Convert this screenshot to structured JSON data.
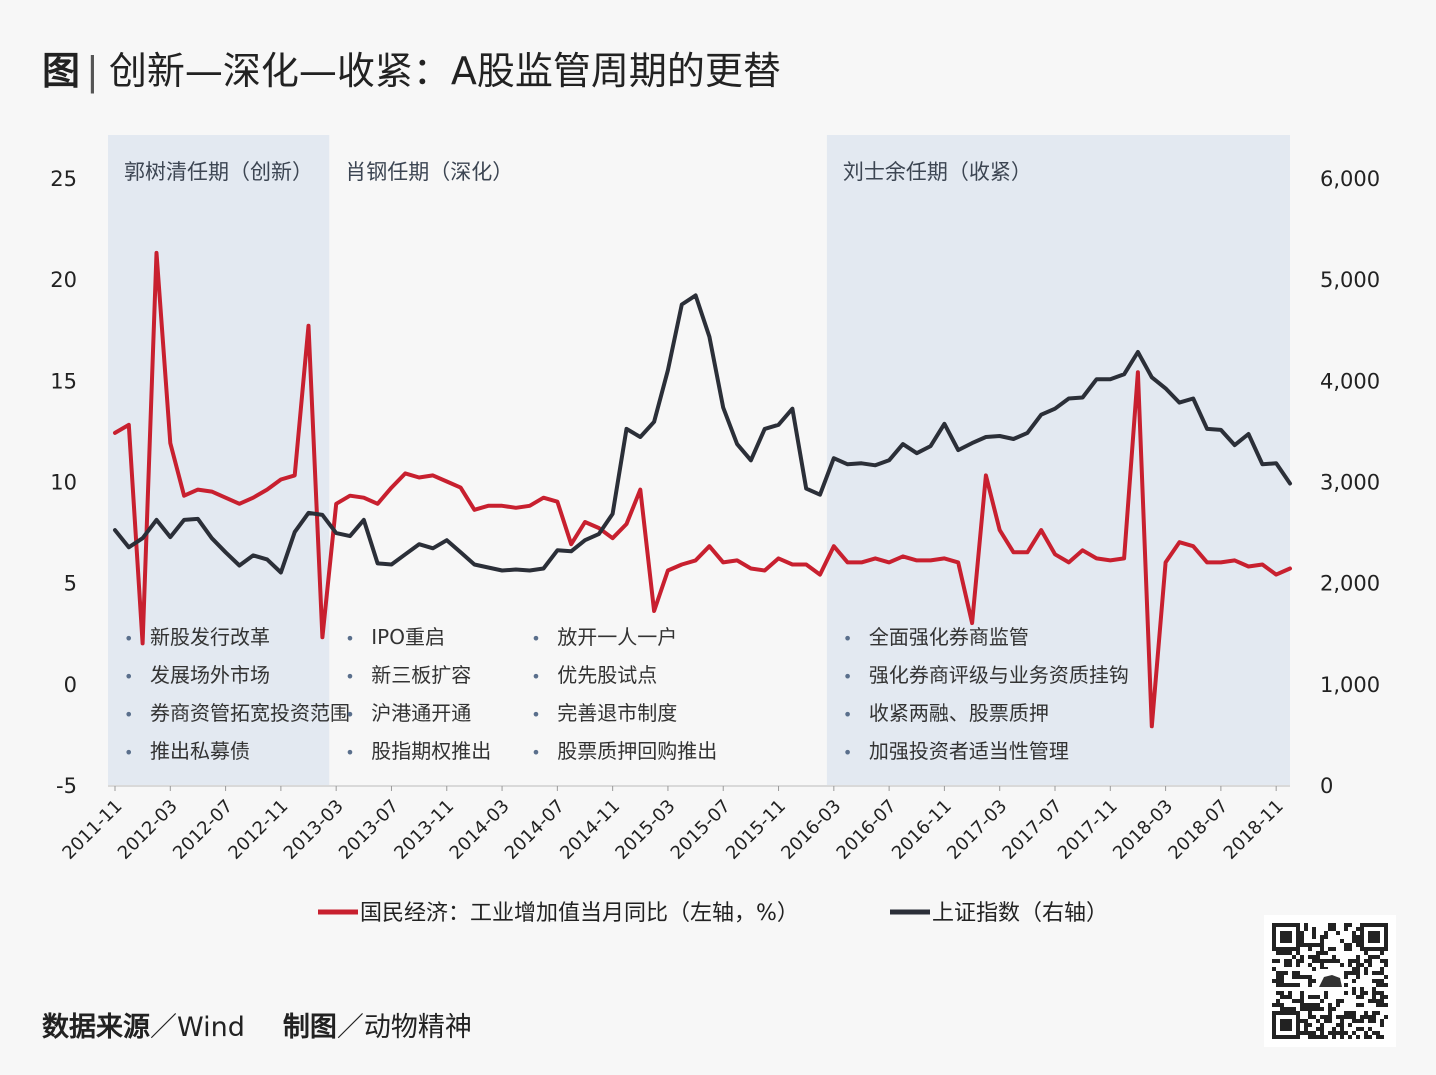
{
  "title": {
    "prefix": "图",
    "separator": "|",
    "text": "创新—深化—收紧：A股监管周期的更替"
  },
  "footer": {
    "source_label": "数据来源",
    "source_value": "／Wind",
    "maker_label": "制图",
    "maker_value": "／动物精神"
  },
  "qr_code": {
    "icon": "qr-code-icon"
  },
  "chart_data": {
    "type": "line",
    "x": [
      "2011-11",
      "2011-12",
      "2012-01",
      "2012-02",
      "2012-03",
      "2012-04",
      "2012-05",
      "2012-06",
      "2012-07",
      "2012-08",
      "2012-09",
      "2012-10",
      "2012-11",
      "2012-12",
      "2013-01",
      "2013-02",
      "2013-03",
      "2013-04",
      "2013-05",
      "2013-06",
      "2013-07",
      "2013-08",
      "2013-09",
      "2013-10",
      "2013-11",
      "2013-12",
      "2014-01",
      "2014-02",
      "2014-03",
      "2014-04",
      "2014-05",
      "2014-06",
      "2014-07",
      "2014-08",
      "2014-09",
      "2014-10",
      "2014-11",
      "2014-12",
      "2015-01",
      "2015-02",
      "2015-03",
      "2015-04",
      "2015-05",
      "2015-06",
      "2015-07",
      "2015-08",
      "2015-09",
      "2015-10",
      "2015-11",
      "2015-12",
      "2016-01",
      "2016-02",
      "2016-03",
      "2016-04",
      "2016-05",
      "2016-06",
      "2016-07",
      "2016-08",
      "2016-09",
      "2016-10",
      "2016-11",
      "2016-12",
      "2017-01",
      "2017-02",
      "2017-03",
      "2017-04",
      "2017-05",
      "2017-06",
      "2017-07",
      "2017-08",
      "2017-09",
      "2017-10",
      "2017-11",
      "2017-12",
      "2018-01",
      "2018-02",
      "2018-03",
      "2018-04",
      "2018-05",
      "2018-06",
      "2018-07",
      "2018-08",
      "2018-09",
      "2018-10",
      "2018-11",
      "2018-12"
    ],
    "x_tick_labels": [
      "2011-11",
      "2012-03",
      "2012-07",
      "2012-11",
      "2013-03",
      "2013-07",
      "2013-11",
      "2014-03",
      "2014-07",
      "2014-11",
      "2015-03",
      "2015-07",
      "2015-11",
      "2016-03",
      "2016-07",
      "2016-11",
      "2017-03",
      "2017-07",
      "2017-11",
      "2018-03",
      "2018-07",
      "2018-11"
    ],
    "y_left": {
      "range": [
        -5,
        25
      ],
      "ticks": [
        "-5",
        "0",
        "5",
        "10",
        "15",
        "20",
        "25"
      ]
    },
    "y_right": {
      "range": [
        0,
        6000
      ],
      "ticks": [
        "0",
        "1,000",
        "2,000",
        "3,000",
        "4,000",
        "5,000",
        "6,000"
      ]
    },
    "series": [
      {
        "name": "国民经济：工业增加值当月同比（左轴，%）",
        "axis": "left",
        "color": "#c8202f",
        "values": [
          12.4,
          12.8,
          2.0,
          21.3,
          11.9,
          9.3,
          9.6,
          9.5,
          9.2,
          8.9,
          9.2,
          9.6,
          10.1,
          10.3,
          17.7,
          2.3,
          8.9,
          9.3,
          9.2,
          8.9,
          9.7,
          10.4,
          10.2,
          10.3,
          10.0,
          9.7,
          8.6,
          8.8,
          8.8,
          8.7,
          8.8,
          9.2,
          9.0,
          6.9,
          8.0,
          7.7,
          7.2,
          7.9,
          9.6,
          3.6,
          5.6,
          5.9,
          6.1,
          6.8,
          6.0,
          6.1,
          5.7,
          5.6,
          6.2,
          5.9,
          5.9,
          5.4,
          6.8,
          6.0,
          6.0,
          6.2,
          6.0,
          6.3,
          6.1,
          6.1,
          6.2,
          6.0,
          3.0,
          10.3,
          7.6,
          6.5,
          6.5,
          7.6,
          6.4,
          6.0,
          6.6,
          6.2,
          6.1,
          6.2,
          15.4,
          -2.1,
          6.0,
          7.0,
          6.8,
          6.0,
          6.0,
          6.1,
          5.8,
          5.9,
          5.4,
          5.7
        ]
      },
      {
        "name": "上证指数（右轴）",
        "axis": "right",
        "color": "#2b2f38",
        "values": [
          2520,
          2350,
          2440,
          2620,
          2450,
          2620,
          2630,
          2440,
          2300,
          2170,
          2270,
          2230,
          2100,
          2500,
          2690,
          2670,
          2490,
          2460,
          2620,
          2190,
          2180,
          2280,
          2380,
          2340,
          2420,
          2300,
          2180,
          2150,
          2120,
          2130,
          2120,
          2140,
          2320,
          2310,
          2420,
          2480,
          2680,
          3520,
          3440,
          3590,
          4100,
          4750,
          4840,
          4430,
          3730,
          3370,
          3210,
          3520,
          3560,
          3720,
          2930,
          2870,
          3230,
          3170,
          3180,
          3160,
          3210,
          3370,
          3280,
          3350,
          3570,
          3310,
          3380,
          3440,
          3450,
          3420,
          3480,
          3660,
          3720,
          3820,
          3830,
          4010,
          4010,
          4060,
          4280,
          4030,
          3920,
          3780,
          3820,
          3520,
          3510,
          3360,
          3470,
          3170,
          3180,
          2980
        ]
      }
    ],
    "periods": [
      {
        "label": "郭树清任期（创新）",
        "start": "2011-11",
        "end": "2013-02",
        "shaded": true,
        "items": [
          "新股发行改革",
          "发展场外市场",
          "券商资管拓宽投资范围",
          "推出私募债"
        ]
      },
      {
        "label": "肖钢任期（深化）",
        "start": "2013-03",
        "end": "2016-02",
        "shaded": false,
        "items": [
          "IPO重启",
          "新三板扩容",
          "沪港通开通",
          "股指期权推出"
        ],
        "items2": [
          "放开一人一户",
          "优先股试点",
          "完善退市制度",
          "股票质押回购推出"
        ]
      },
      {
        "label": "刘士余任期（收紧）",
        "start": "2016-03",
        "end": "2018-12",
        "shaded": true,
        "items": [
          "全面强化券商监管",
          "强化券商评级与业务资质挂钩",
          "收紧两融、股票质押",
          "加强投资者适当性管理"
        ]
      }
    ],
    "legend_position": "bottom-center",
    "grid": false
  }
}
